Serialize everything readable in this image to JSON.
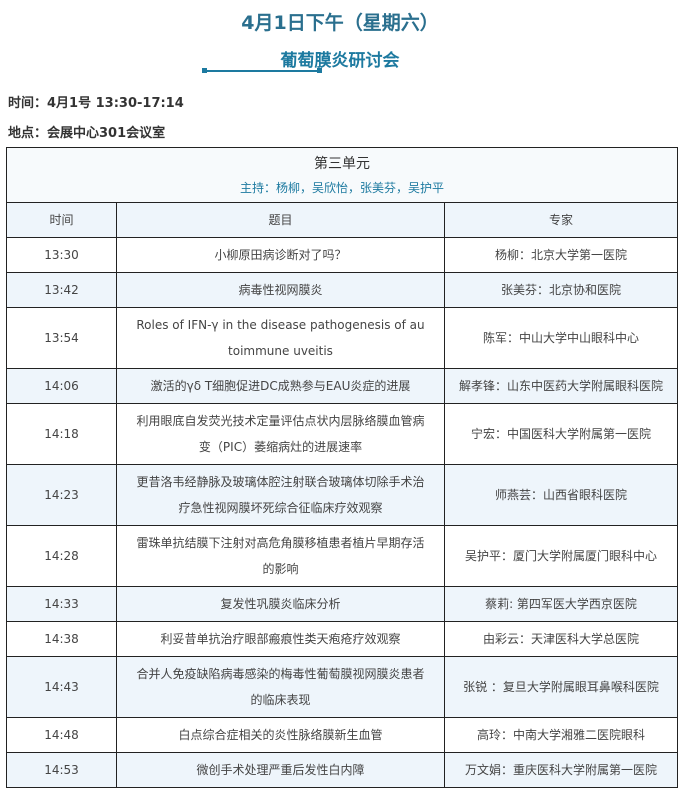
{
  "header": {
    "title": "4月1日下午（星期六）",
    "subtitle": "葡萄膜炎研讨会"
  },
  "info": {
    "time": "时间：4月1号 13:30-17:14",
    "place": "地点：会展中心301会议室"
  },
  "table": {
    "unit": "第三单元",
    "moderators": "主持：杨柳，吴欣怡，张美芬，吴护平",
    "columns": [
      "时间",
      "题目",
      "专家"
    ],
    "rows": [
      {
        "time": "13:30",
        "topic": "小柳原田病诊断对了吗？",
        "speaker": "杨柳：北京大学第一医院"
      },
      {
        "time": "13:42",
        "topic": "病毒性视网膜炎",
        "speaker": "张美芬：北京协和医院"
      },
      {
        "time": "13:54",
        "topic": "Roles of IFN-γ in the disease pathogenesis of autoimmune uveitis",
        "speaker": "陈军：中山大学中山眼科中心"
      },
      {
        "time": "14:06",
        "topic": "激活的γδ T细胞促进DC成熟参与EAU炎症的进展",
        "speaker": "解孝锋：山东中医药大学附属眼科医院"
      },
      {
        "time": "14:18",
        "topic": "利用眼底自发荧光技术定量评估点状内层脉络膜血管病变（PIC）萎缩病灶的进展速率",
        "speaker": "宁宏：中国医科大学附属第一医院"
      },
      {
        "time": "14:23",
        "topic": "更昔洛韦经静脉及玻璃体腔注射联合玻璃体切除手术治疗急性视网膜坏死综合征临床疗效观察",
        "speaker": "师燕芸：山西省眼科医院"
      },
      {
        "time": "14:28",
        "topic": "雷珠单抗结膜下注射对高危角膜移植患者植片早期存活的影响",
        "speaker": "吴护平：厦门大学附属厦门眼科中心"
      },
      {
        "time": "14:33",
        "topic": "复发性巩膜炎临床分析",
        "speaker": "蔡莉: 第四军医大学西京医院"
      },
      {
        "time": "14:38",
        "topic": "利妥昔单抗治疗眼部瘢痕性类天疱疮疗效观察",
        "speaker": "由彩云：天津医科大学总医院"
      },
      {
        "time": "14:43",
        "topic": "合并人免疫缺陷病毒感染的梅毒性葡萄膜视网膜炎患者的临床表现",
        "speaker": "张锐 ：复旦大学附属眼耳鼻喉科医院"
      },
      {
        "time": "14:48",
        "topic": "白点综合症相关的炎性脉络膜新生血管",
        "speaker": "高玲：中南大学湘雅二医院眼科"
      },
      {
        "time": "14:53",
        "topic": "微创手术处理严重后发性白内障",
        "speaker": "万文娟：重庆医科大学附属第一医院"
      }
    ]
  },
  "colors": {
    "accent": "#1d7aa0",
    "row_alt": "#eef5fb"
  }
}
